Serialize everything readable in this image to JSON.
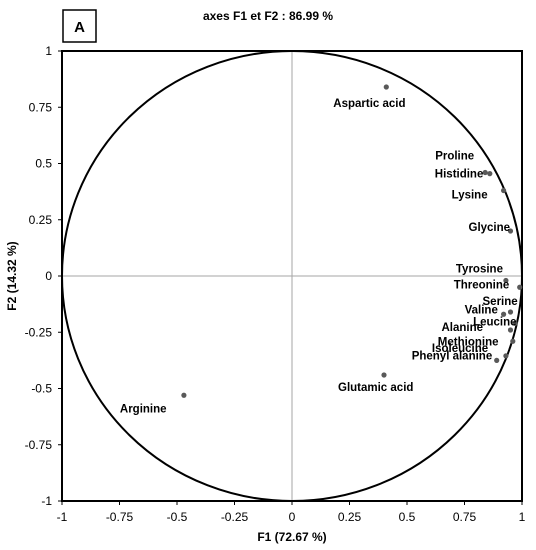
{
  "chart_data": {
    "type": "scatter",
    "panel_label": "A",
    "title": "axes F1 et F2 : 86.99 %",
    "xlabel": "F1 (72.67 %)",
    "ylabel": "F2 (14.32 %)",
    "xlim": [
      -1,
      1
    ],
    "ylim": [
      -1,
      1
    ],
    "x_ticks": [
      "-1",
      "-0.75",
      "-0.5",
      "-0.25",
      "0",
      "0.25",
      "0.5",
      "0.75",
      "1"
    ],
    "y_ticks": [
      "1",
      "0.75",
      "0.5",
      "0.25",
      "0",
      "-0.25",
      "-0.5",
      "-0.75",
      "-1"
    ],
    "unit_circle": true,
    "point_color": "#595959",
    "points": [
      {
        "label": "Aspartic acid",
        "x": 0.41,
        "y": 0.84
      },
      {
        "label": "Proline",
        "x": 0.84,
        "y": 0.46
      },
      {
        "label": "Histidine",
        "x": 0.86,
        "y": 0.455
      },
      {
        "label": "Lysine",
        "x": 0.92,
        "y": 0.38
      },
      {
        "label": "Glycine",
        "x": 0.95,
        "y": 0.2
      },
      {
        "label": "Tyrosine",
        "x": 0.93,
        "y": -0.02
      },
      {
        "label": "Threonine",
        "x": 0.99,
        "y": -0.05
      },
      {
        "label": "Serine",
        "x": 0.95,
        "y": -0.16
      },
      {
        "label": "Valine",
        "x": 0.92,
        "y": -0.17
      },
      {
        "label": "Leucine",
        "x": 0.97,
        "y": -0.21
      },
      {
        "label": "Alanine",
        "x": 0.95,
        "y": -0.24
      },
      {
        "label": "Methionine",
        "x": 0.96,
        "y": -0.29
      },
      {
        "label": "Isoleucine",
        "x": 0.93,
        "y": -0.355
      },
      {
        "label": "Phenyl alanine",
        "x": 0.89,
        "y": -0.375
      },
      {
        "label": "Glutamic acid",
        "x": 0.4,
        "y": -0.44
      },
      {
        "label": "Arginine",
        "x": -0.47,
        "y": -0.53
      }
    ]
  }
}
